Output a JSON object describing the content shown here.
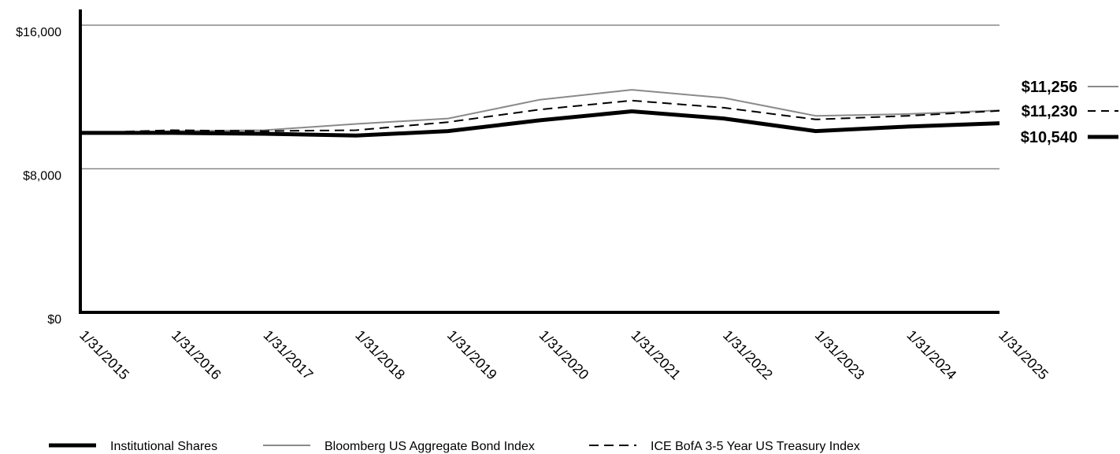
{
  "chart_data": {
    "type": "line",
    "title": "",
    "xlabel": "",
    "ylabel": "",
    "ylim": [
      0,
      16000
    ],
    "yticks": [
      0,
      8000,
      16000
    ],
    "ytick_labels": [
      "$0",
      "$8,000",
      "$16,000"
    ],
    "grid": true,
    "x": [
      "1/31/2015",
      "1/31/2016",
      "1/31/2017",
      "1/31/2018",
      "1/31/2019",
      "1/31/2020",
      "1/31/2021",
      "1/31/2022",
      "1/31/2023",
      "1/31/2024",
      "1/31/2025"
    ],
    "series": [
      {
        "name": "Institutional Shares",
        "style": "thick-solid",
        "color": "#000000",
        "values": [
          10000,
          10000,
          9950,
          9850,
          10100,
          10700,
          11200,
          10800,
          10100,
          10350,
          10540
        ],
        "end_label": "$10,540"
      },
      {
        "name": "Bloomberg US Aggregate Bond Index",
        "style": "thin-solid",
        "color": "#8a8a8a",
        "values": [
          10000,
          10100,
          10150,
          10500,
          10800,
          11850,
          12400,
          11950,
          10950,
          11050,
          11256
        ],
        "end_label": "$11,256"
      },
      {
        "name": "ICE BofA 3-5 Year US Treasury Index",
        "style": "dashed",
        "color": "#000000",
        "values": [
          10000,
          10150,
          10100,
          10150,
          10600,
          11300,
          11800,
          11400,
          10750,
          10950,
          11230
        ],
        "end_label": "$11,230"
      }
    ],
    "legend_position": "bottom"
  }
}
